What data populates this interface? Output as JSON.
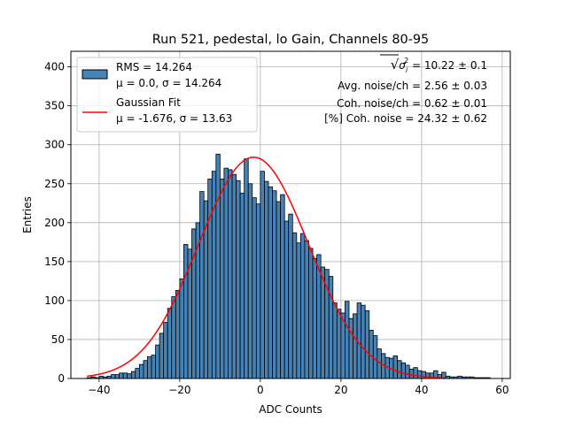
{
  "chart_data": {
    "type": "bar",
    "title": "Run 521, pedestal, lo Gain, Channels 80-95",
    "xlabel": "ADC Counts",
    "ylabel": "Entries",
    "xlim": [
      -47,
      62
    ],
    "ylim": [
      0,
      420
    ],
    "grid": true,
    "bin_width": 1,
    "xticks": [
      -40,
      -20,
      0,
      20,
      40,
      60
    ],
    "yticks": [
      0,
      50,
      100,
      150,
      200,
      250,
      300,
      350,
      400
    ],
    "xtick_labels": [
      "−40",
      "−20",
      "0",
      "20",
      "40",
      "60"
    ],
    "ytick_labels": [
      "0",
      "50",
      "100",
      "150",
      "200",
      "250",
      "300",
      "350",
      "400"
    ],
    "colors": {
      "bar_fill": "#4682b4",
      "bar_edge": "#000000",
      "fit_line": "#ff0000",
      "grid": "#b0b0b0"
    },
    "histogram": {
      "bin_starts": [
        -43,
        -42,
        -41,
        -40,
        -39,
        -38,
        -37,
        -36,
        -35,
        -34,
        -33,
        -32,
        -31,
        -30,
        -29,
        -28,
        -27,
        -26,
        -25,
        -24,
        -23,
        -22,
        -21,
        -20,
        -19,
        -18,
        -17,
        -16,
        -15,
        -14,
        -13,
        -12,
        -11,
        -10,
        -9,
        -8,
        -7,
        -6,
        -5,
        -4,
        -3,
        -2,
        -1,
        0,
        1,
        2,
        3,
        4,
        5,
        6,
        7,
        8,
        9,
        10,
        11,
        12,
        13,
        14,
        15,
        16,
        17,
        18,
        19,
        20,
        21,
        22,
        23,
        24,
        25,
        26,
        27,
        28,
        29,
        30,
        31,
        32,
        33,
        34,
        35,
        36,
        37,
        38,
        39,
        40,
        41,
        42,
        43,
        44,
        45,
        46,
        47,
        48,
        49,
        50,
        51,
        52,
        53,
        54,
        55,
        56
      ],
      "counts": [
        1,
        2,
        1,
        3,
        2,
        3,
        5,
        5,
        7,
        7,
        6,
        9,
        13,
        18,
        23,
        28,
        30,
        43,
        58,
        72,
        90,
        105,
        113,
        128,
        172,
        166,
        192,
        200,
        240,
        228,
        256,
        266,
        288,
        256,
        270,
        268,
        262,
        254,
        238,
        282,
        250,
        232,
        224,
        266,
        253,
        246,
        241,
        227,
        236,
        202,
        211,
        187,
        174,
        186,
        177,
        167,
        154,
        159,
        143,
        140,
        131,
        97,
        89,
        84,
        99,
        77,
        83,
        97,
        94,
        87,
        62,
        55,
        38,
        32,
        27,
        26,
        29,
        23,
        20,
        17,
        12,
        14,
        10,
        9,
        7,
        7,
        10,
        5,
        8,
        3,
        2,
        2,
        3,
        2,
        2,
        2,
        1,
        1,
        1,
        1
      ]
    },
    "fit_curve": {
      "name": "Gaussian Fit",
      "mu": -1.676,
      "sigma": 13.63,
      "amplitude": 284,
      "x_range": [
        -43,
        46
      ]
    },
    "legend": {
      "position": "upper-left",
      "entries": [
        {
          "name": "RMS = 14.264",
          "line2": "μ = 0.0, σ = 14.264",
          "marker": "patch"
        },
        {
          "name": "Gaussian Fit",
          "line2": "μ = -1.676, σ = 13.63",
          "marker": "line"
        }
      ]
    },
    "annotations": {
      "noise_prefix": "√",
      "noise_symbol": "σ",
      "noise_subscript": "i",
      "noise_superscript": "2",
      "noise_value": " = 10.22 ± 0.1",
      "avg_noise": "Avg. noise/ch = 2.56 ± 0.03",
      "coh_noise": "Coh. noise/ch = 0.62 ± 0.01",
      "coh_percent": "[%] Coh. noise = 24.32 ± 0.62"
    }
  }
}
